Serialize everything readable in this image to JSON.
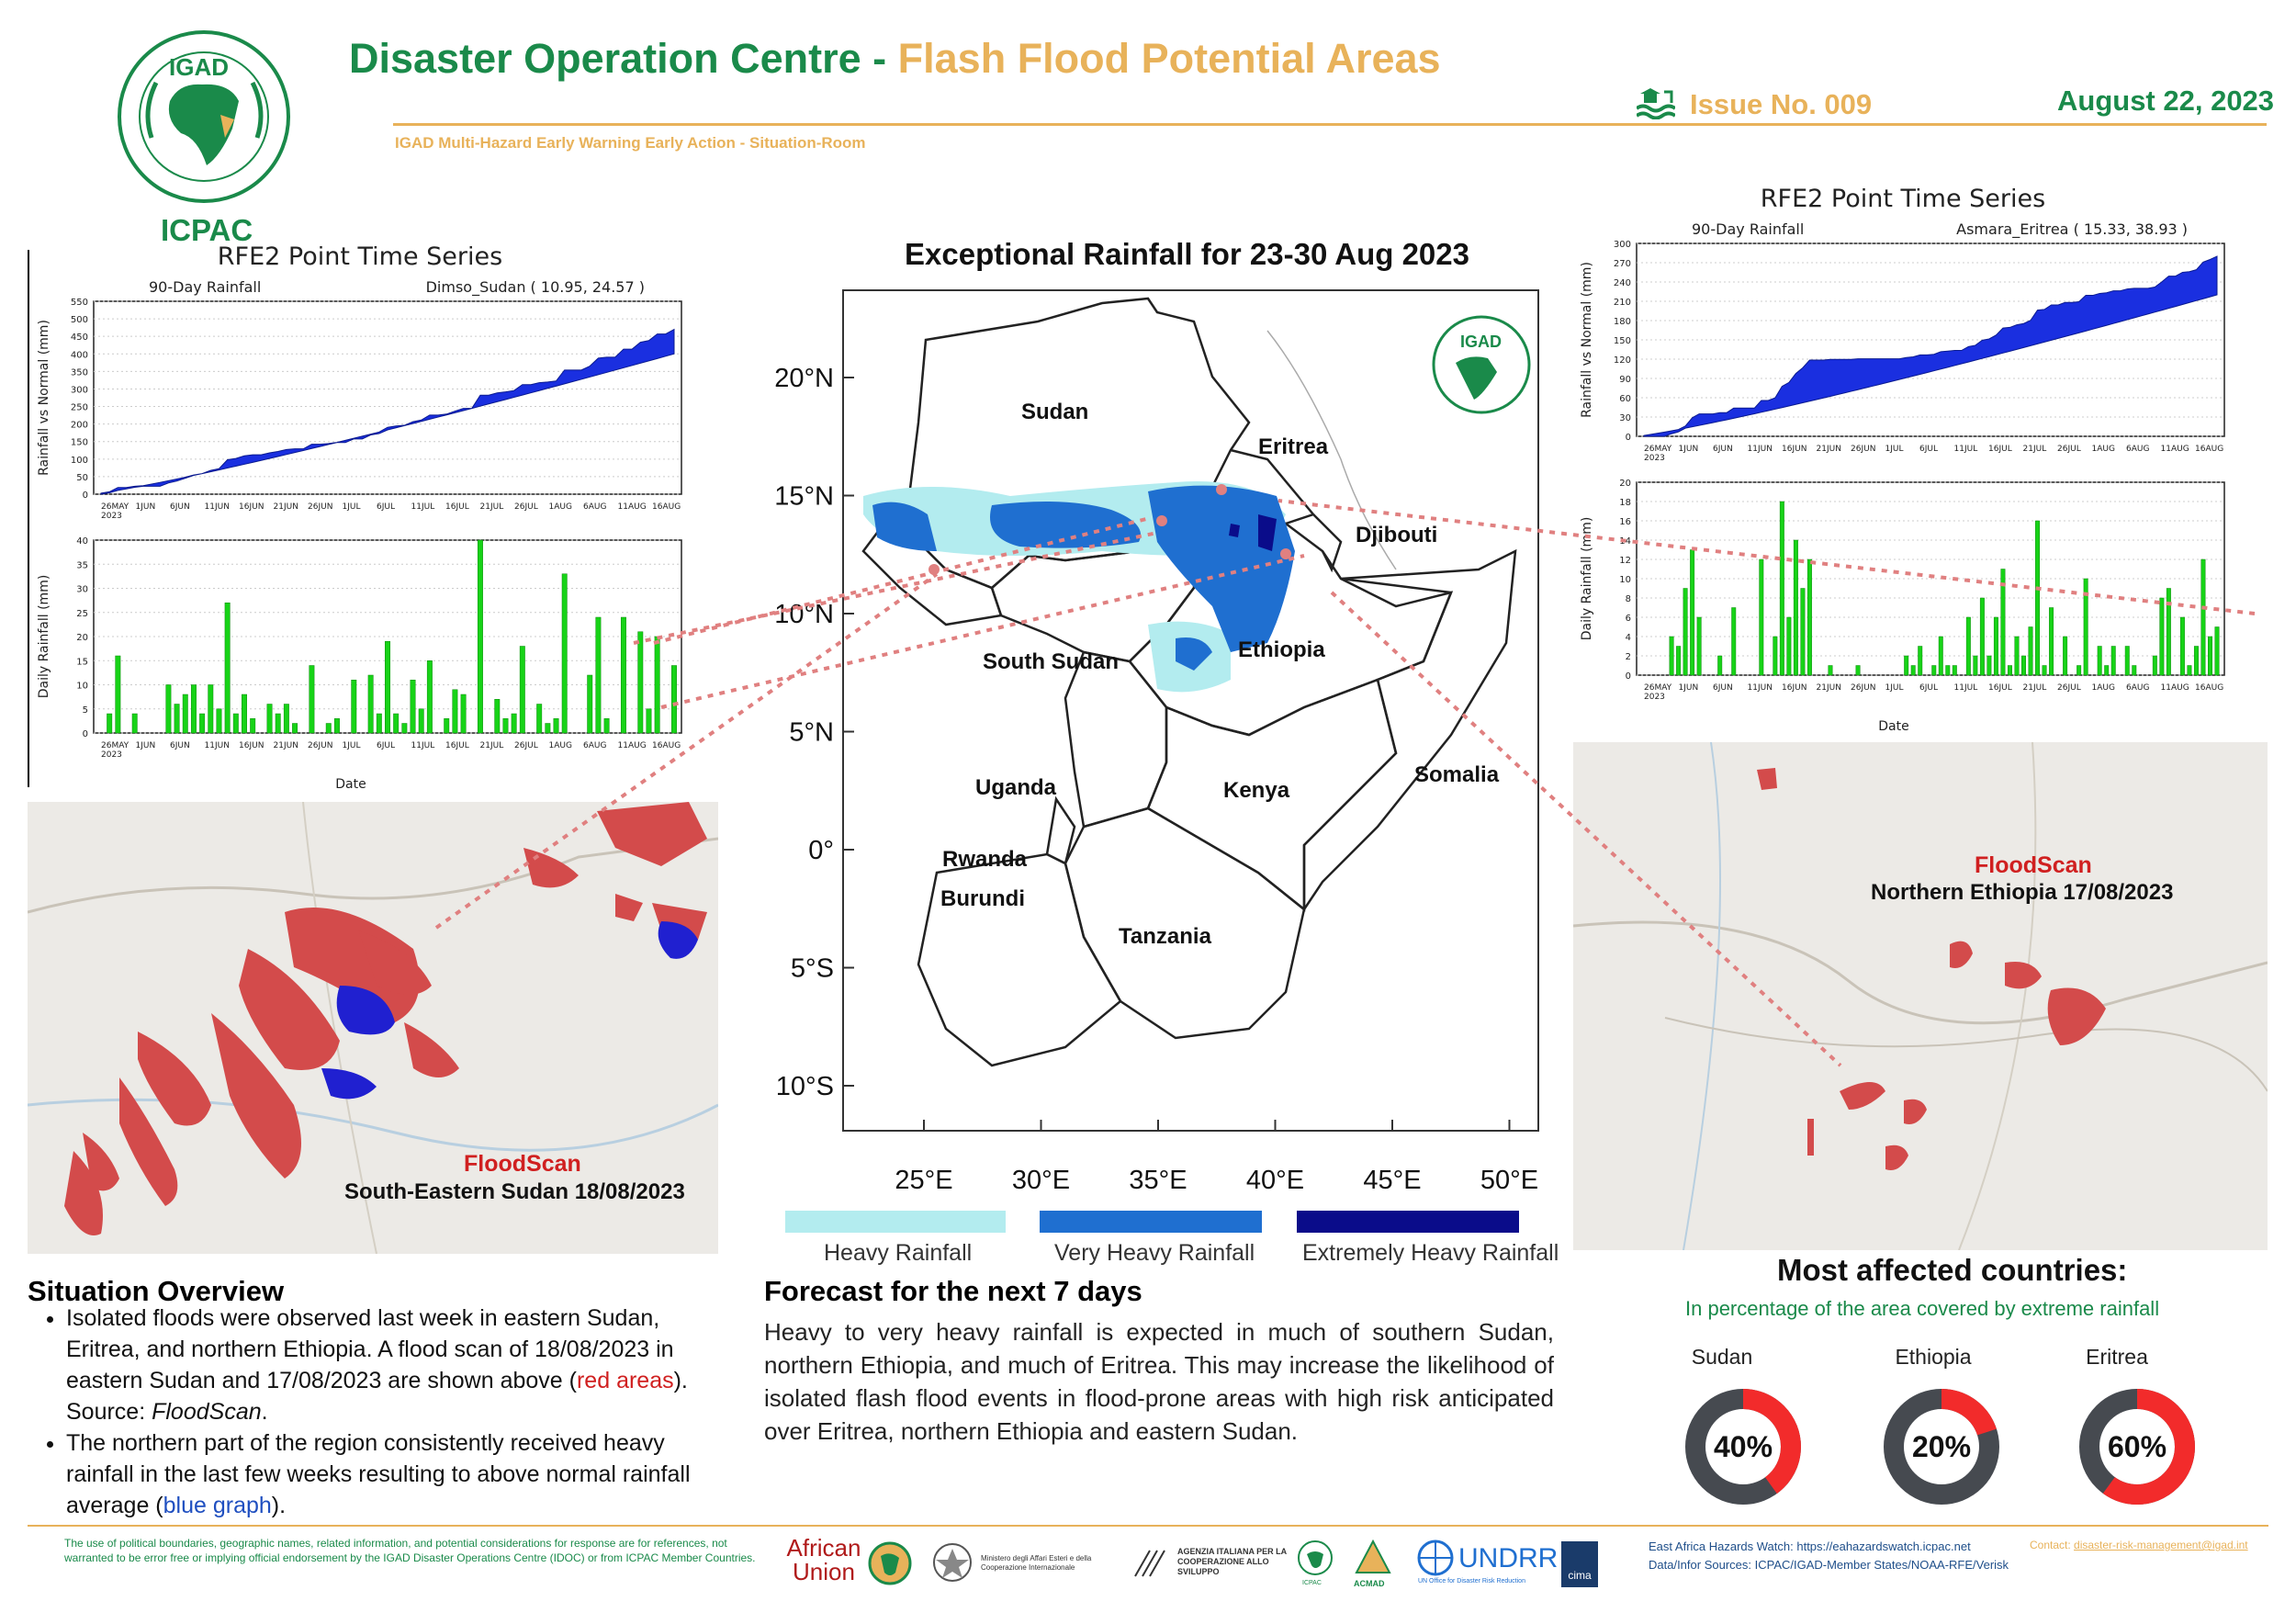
{
  "header": {
    "title_main": "Disaster Operation Centre - ",
    "title_accent": "Flash Flood Potential Areas",
    "issue": "Issue No. 009",
    "date": "August 22, 2023",
    "subtitle": "IGAD Multi-Hazard Early Warning Early Action - Situation-Room",
    "logo_text": "IGAD",
    "org": "ICPAC"
  },
  "left_chart": {
    "title": "RFE2 Point Time Series",
    "series_label": "90-Day Rainfall",
    "location": "Dimso_Sudan ( 10.95, 24.57 )",
    "top_ylabel": "Rainfall vs Normal (mm)",
    "top_yticks": [
      "550",
      "500",
      "450",
      "400",
      "350",
      "300",
      "250",
      "200",
      "150",
      "100",
      "50",
      "0"
    ],
    "bottom_ylabel": "Daily Rainfall (mm)",
    "bottom_yticks": [
      "40",
      "35",
      "30",
      "25",
      "20",
      "15",
      "10",
      "5",
      "0"
    ],
    "xticks": [
      "26MAY\n2023",
      "1JUN",
      "6JUN",
      "11JUN",
      "16JUN",
      "21JUN",
      "26JUN",
      "1JUL",
      "6JUL",
      "11JUL",
      "16JUL",
      "21JUL",
      "26JUL",
      "1AUG",
      "6AUG",
      "11AUG",
      "16AUG"
    ],
    "xlabel": "Date",
    "daily": [
      0,
      4,
      16,
      0,
      4,
      0,
      0,
      0,
      10,
      6,
      8,
      10,
      4,
      10,
      5,
      27,
      4,
      8,
      3,
      0,
      6,
      4,
      6,
      2,
      0,
      14,
      0,
      2,
      3,
      0,
      11,
      0,
      12,
      4,
      19,
      4,
      2,
      11,
      5,
      15,
      0,
      3,
      9,
      8,
      0,
      40,
      0,
      7,
      3,
      4,
      18,
      0,
      6,
      2,
      3,
      33,
      0,
      0,
      12,
      24,
      3,
      0,
      24,
      0,
      21,
      5,
      20,
      0,
      14
    ],
    "cum_actual_end": 470,
    "cum_normal_end": 400
  },
  "right_chart": {
    "title": "RFE2 Point Time Series",
    "series_label": "90-Day Rainfall",
    "location": "Asmara_Eritrea ( 15.33, 38.93 )",
    "top_ylabel": "Rainfall vs Normal (mm)",
    "top_yticks": [
      "300",
      "270",
      "240",
      "210",
      "180",
      "150",
      "120",
      "90",
      "60",
      "30",
      "0"
    ],
    "bottom_ylabel": "Daily Rainfall (mm)",
    "bottom_yticks": [
      "20",
      "18",
      "16",
      "14",
      "12",
      "10",
      "8",
      "6",
      "4",
      "2",
      "0"
    ],
    "xticks": [
      "26MAY\n2023",
      "1JUN",
      "6JUN",
      "11JUN",
      "16JUN",
      "21JUN",
      "26JUN",
      "1JUL",
      "6JUL",
      "11JUL",
      "16JUL",
      "21JUL",
      "26JUL",
      "1AUG",
      "6AUG",
      "11AUG",
      "16AUG"
    ],
    "xlabel": "Date",
    "daily": [
      0,
      0,
      0,
      0,
      4,
      3,
      9,
      13,
      6,
      0,
      0,
      2,
      0,
      7,
      0,
      0,
      0,
      12,
      0,
      4,
      18,
      6,
      14,
      9,
      12,
      0,
      0,
      1,
      0,
      0,
      0,
      1,
      0,
      0,
      0,
      0,
      0,
      0,
      2,
      1,
      3,
      0,
      1,
      4,
      1,
      1,
      0,
      6,
      2,
      8,
      2,
      6,
      11,
      1,
      4,
      2,
      5,
      16,
      1,
      7,
      0,
      4,
      0,
      1,
      10,
      0,
      3,
      1,
      3,
      0,
      3,
      1,
      0,
      0,
      2,
      8,
      9,
      0,
      6,
      1,
      3,
      12,
      4,
      5
    ],
    "cum_actual_end": 280,
    "cum_normal_end": 220
  },
  "map": {
    "title": "Exceptional Rainfall for 23-30 Aug 2023",
    "lat_labels": [
      "20°N",
      "15°N",
      "10°N",
      "5°N",
      "0°",
      "5°S",
      "10°S"
    ],
    "lon_labels": [
      "25°E",
      "30°E",
      "35°E",
      "40°E",
      "45°E",
      "50°E"
    ],
    "countries": [
      "Sudan",
      "Eritrea",
      "Djibouti",
      "South Sudan",
      "Ethiopia",
      "Uganda",
      "Kenya",
      "Somalia",
      "Rwanda",
      "Burundi",
      "Tanzania"
    ],
    "legend": [
      {
        "label": "Heavy Rainfall",
        "color": "#b3ecef"
      },
      {
        "label": "Very Heavy Rainfall",
        "color": "#1f6fd0"
      },
      {
        "label": "Extremely Heavy Rainfall",
        "color": "#0a0c8a"
      }
    ]
  },
  "floodscan_left": {
    "source": "FloodScan",
    "caption": "South-Eastern Sudan 18/08/2023"
  },
  "floodscan_right": {
    "source": "FloodScan",
    "caption": "Northern  Ethiopia 17/08/2023"
  },
  "situation": {
    "heading": "Situation Overview",
    "b1_a": "Isolated floods were observed last week in eastern Sudan, Eritrea, and northern Ethiopia. A flood scan of 18/08/2023 in eastern Sudan and 17/08/2023 are shown above (",
    "b1_red": "red areas",
    "b1_b": "). Source: ",
    "b1_src": "FloodScan",
    "b1_c": ".",
    "b2_a": "The northern part of the region consistently received heavy rainfall in the last few weeks resulting to above normal rainfall average (",
    "b2_blue": "blue graph",
    "b2_b": ")."
  },
  "forecast": {
    "heading": "Forecast for the next 7 days",
    "text": "Heavy to very heavy rainfall is expected in much of southern Sudan, northern Ethiopia, and much of Eritrea. This may increase the likelihood of isolated flash flood events in flood-prone areas with high risk anticipated over Eritrea, northern Ethiopia and eastern Sudan."
  },
  "affected": {
    "heading": "Most affected countries:",
    "sub": "In percentage of the area covered by extreme rainfall",
    "items": [
      {
        "country": "Sudan",
        "pct": 40,
        "label": "40%"
      },
      {
        "country": "Ethiopia",
        "pct": 20,
        "label": "20%"
      },
      {
        "country": "Eritrea",
        "pct": 60,
        "label": "60%"
      }
    ],
    "color_fill": "#f22b2b",
    "color_rest": "#464a50"
  },
  "footer": {
    "disclaimer": "The use of political boundaries, geographic names, related information, and potential considerations for response are for references, not warranted to be error free or implying official endorsement by the IGAD Disaster Operations Centre (IDOC) or from ICPAC Member Countries.",
    "logos": [
      "African Union",
      "Ministero degli Affari Esteri e della Cooperazione Internazionale",
      "AGENZIA ITALIANA PER LA COOPERAZIONE ALLO SVILUPPO",
      "ICPAC",
      "ACMAD",
      "UNDRR",
      "cima"
    ],
    "watch": "East Africa Hazards Watch: https://eahazardswatch.icpac.net",
    "sources": "Data/Infor Sources:  ICPAC/IGAD-Member States/NOAA-RFE/Verisk",
    "contact_label": "Contact: ",
    "contact": "disaster-risk-management@igad.int"
  }
}
